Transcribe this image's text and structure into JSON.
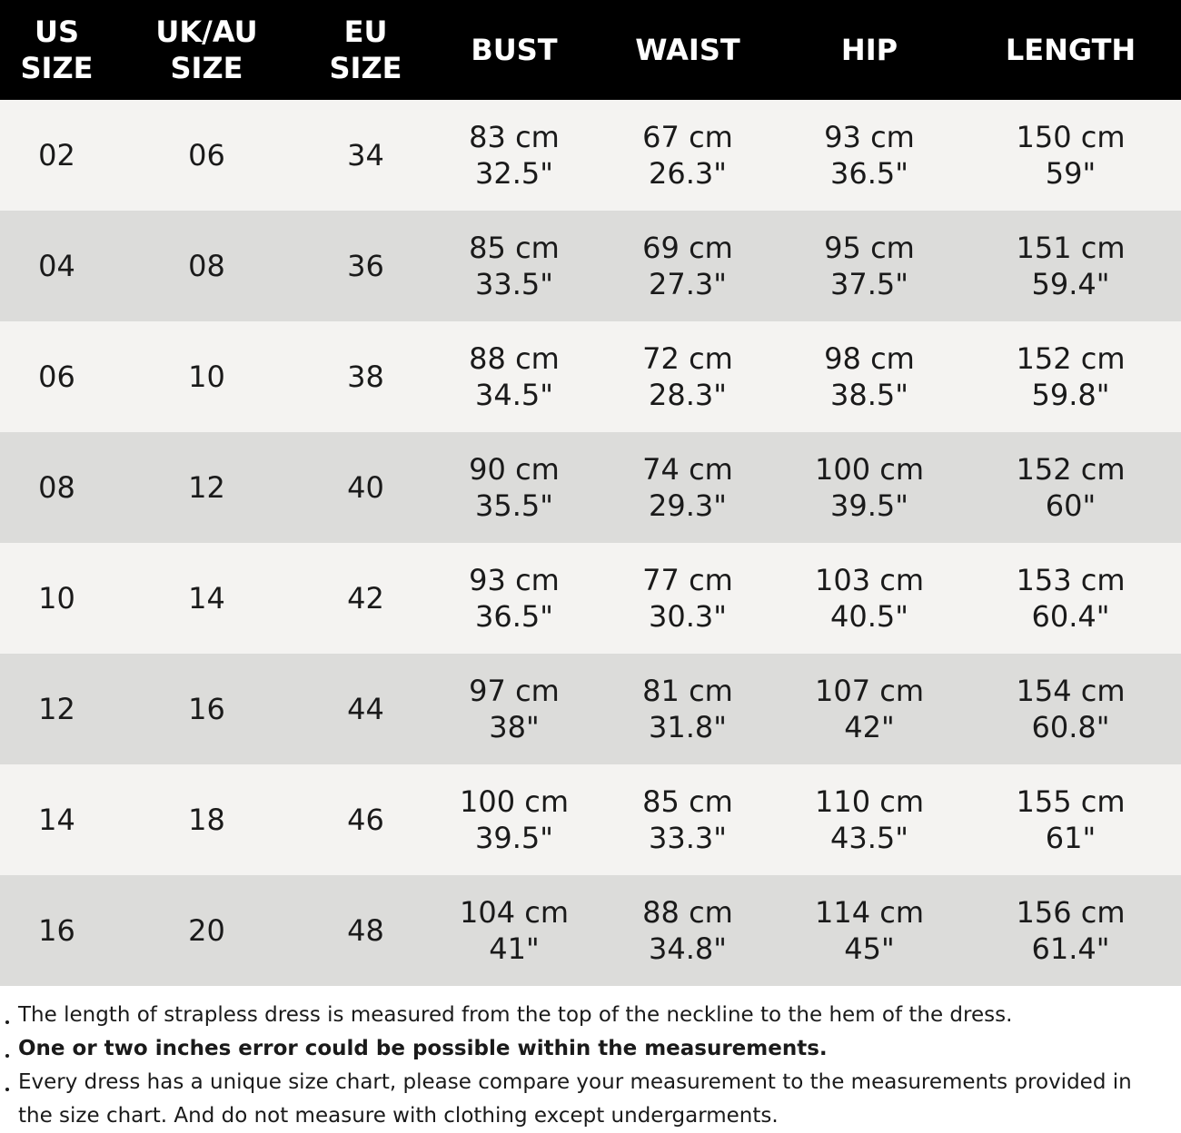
{
  "table": {
    "headers": [
      "US\nSIZE",
      "UK/AU\nSIZE",
      "EU\nSIZE",
      "BUST",
      "WAIST",
      "HIP",
      "LENGTH"
    ],
    "rows": [
      [
        "02",
        "06",
        "34",
        [
          "83 cm",
          "32.5\""
        ],
        [
          "67 cm",
          "26.3\""
        ],
        [
          "93 cm",
          "36.5\""
        ],
        [
          "150 cm",
          "59\""
        ]
      ],
      [
        "04",
        "08",
        "36",
        [
          "85 cm",
          "33.5\""
        ],
        [
          "69 cm",
          "27.3\""
        ],
        [
          "95 cm",
          "37.5\""
        ],
        [
          "151 cm",
          "59.4\""
        ]
      ],
      [
        "06",
        "10",
        "38",
        [
          "88 cm",
          "34.5\""
        ],
        [
          "72 cm",
          "28.3\""
        ],
        [
          "98 cm",
          "38.5\""
        ],
        [
          "152 cm",
          "59.8\""
        ]
      ],
      [
        "08",
        "12",
        "40",
        [
          "90 cm",
          "35.5\""
        ],
        [
          "74 cm",
          "29.3\""
        ],
        [
          "100 cm",
          "39.5\""
        ],
        [
          "152 cm",
          "60\""
        ]
      ],
      [
        "10",
        "14",
        "42",
        [
          "93 cm",
          "36.5\""
        ],
        [
          "77 cm",
          "30.3\""
        ],
        [
          "103 cm",
          "40.5\""
        ],
        [
          "153 cm",
          "60.4\""
        ]
      ],
      [
        "12",
        "16",
        "44",
        [
          "97 cm",
          "38\""
        ],
        [
          "81 cm",
          "31.8\""
        ],
        [
          "107 cm",
          "42\""
        ],
        [
          "154 cm",
          "60.8\""
        ]
      ],
      [
        "14",
        "18",
        "46",
        [
          "100 cm",
          "39.5\""
        ],
        [
          "85 cm",
          "33.3\""
        ],
        [
          "110 cm",
          "43.5\""
        ],
        [
          "155 cm",
          "61\""
        ]
      ],
      [
        "16",
        "20",
        "48",
        [
          "104 cm",
          "41\""
        ],
        [
          "88 cm",
          "34.8\""
        ],
        [
          "114 cm",
          "45\""
        ],
        [
          "156 cm",
          "61.4\""
        ]
      ]
    ]
  },
  "notes": [
    {
      "text": "The length of strapless dress is measured from the top of the neckline to the hem of the dress.",
      "bold": false
    },
    {
      "text": "One or two inches error could be possible within the measurements.",
      "bold": true
    },
    {
      "text": "Every dress has a unique size chart, please compare your measurement to the measurements provided in the size chart. And do not measure with clothing except undergarments.",
      "bold": false
    }
  ]
}
